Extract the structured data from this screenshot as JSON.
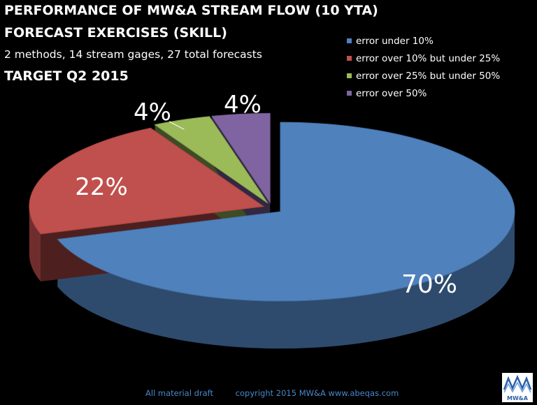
{
  "header": {
    "title_line1": "PERFORMANCE OF MW&A STREAM FLOW (10 YTA)",
    "title_line2": "FORECAST EXERCISES (SKILL)",
    "subtitle": "2 methods, 14 stream gages, 27 total forecasts",
    "target": "TARGET Q2 2015"
  },
  "chart_data": {
    "type": "pie",
    "style": "3d-exploded",
    "legend_position": "top-right",
    "slices": [
      {
        "label": "error under 10%",
        "value": 70,
        "data_label": "70%",
        "color": "#4f81bd"
      },
      {
        "label": "error over 10% but under 25%",
        "value": 22,
        "data_label": "22%",
        "color": "#c0504d"
      },
      {
        "label": "error over 25% but under 50%",
        "value": 4,
        "data_label": "4%",
        "color": "#9bbb59"
      },
      {
        "label": "error over 50%",
        "value": 4,
        "data_label": "4%",
        "color": "#8064a2"
      }
    ]
  },
  "footer": {
    "draft_note": "All material draft",
    "copyright": "copyright 2015   MW&A www.abeqas.com"
  },
  "logo": {
    "text": "MW&A"
  }
}
